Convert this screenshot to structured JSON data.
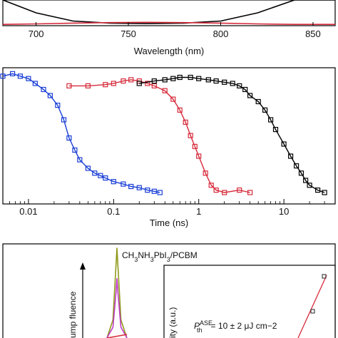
{
  "chart_data": [
    {
      "type": "line",
      "xlabel": "Wavelength (nm)",
      "xlim": [
        682,
        862
      ],
      "ylim": [
        0,
        1
      ],
      "x_ticks": [
        "700",
        "750",
        "800",
        "850"
      ],
      "x_tick_values": [
        700,
        750,
        800,
        850
      ],
      "series": [
        {
          "color": "#000000",
          "x": [
            682,
            700,
            720,
            740,
            760,
            780,
            800,
            820,
            840,
            862
          ],
          "y": [
            1.0,
            0.5,
            0.18,
            0.1,
            0.08,
            0.1,
            0.18,
            0.5,
            1.0,
            1.0
          ]
        },
        {
          "color": "#d62a3a",
          "x": [
            682,
            700,
            720,
            740,
            760,
            780,
            800,
            820,
            840,
            862
          ],
          "y": [
            0.05,
            0.07,
            0.1,
            0.12,
            0.13,
            0.12,
            0.1,
            0.07,
            0.05,
            0.05
          ]
        }
      ]
    },
    {
      "type": "scatter",
      "xlabel": "Time (ns)",
      "xscale": "log",
      "xlim": [
        0.005,
        40
      ],
      "ylim": [
        0,
        1
      ],
      "x_ticks": [
        "0.01",
        "0.1",
        "1",
        "10"
      ],
      "x_tick_values": [
        0.01,
        0.1,
        1,
        10
      ],
      "series": [
        {
          "color": "#1a3fd6",
          "x": [
            0.005,
            0.0065,
            0.008,
            0.01,
            0.012,
            0.015,
            0.018,
            0.022,
            0.026,
            0.03,
            0.035,
            0.04,
            0.05,
            0.06,
            0.07,
            0.08,
            0.1,
            0.13,
            0.16,
            0.2,
            0.25,
            0.3,
            0.35
          ],
          "y": [
            0.96,
            0.98,
            0.96,
            0.94,
            0.9,
            0.85,
            0.8,
            0.72,
            0.6,
            0.45,
            0.35,
            0.27,
            0.2,
            0.16,
            0.14,
            0.12,
            0.09,
            0.07,
            0.05,
            0.04,
            0.02,
            0.01,
            0.0
          ]
        },
        {
          "color": "#d62a3a",
          "x": [
            0.03,
            0.05,
            0.08,
            0.1,
            0.13,
            0.16,
            0.2,
            0.25,
            0.3,
            0.4,
            0.5,
            0.6,
            0.7,
            0.8,
            0.9,
            1.0,
            1.2,
            1.4,
            1.6,
            2.0,
            3.0,
            4.0
          ],
          "y": [
            0.88,
            0.88,
            0.89,
            0.9,
            0.92,
            0.93,
            0.92,
            0.9,
            0.88,
            0.84,
            0.77,
            0.68,
            0.58,
            0.47,
            0.38,
            0.3,
            0.16,
            0.06,
            0.02,
            0.0,
            0.02,
            0.0
          ]
        },
        {
          "color": "#000000",
          "x": [
            0.2,
            0.3,
            0.4,
            0.5,
            0.6,
            0.8,
            1.0,
            1.3,
            1.6,
            2.0,
            2.5,
            3.0,
            3.5,
            4.0,
            5.0,
            6.0,
            7.0,
            8.0,
            10,
            12,
            14,
            16,
            18,
            20,
            25,
            30
          ],
          "y": [
            0.9,
            0.92,
            0.93,
            0.94,
            0.95,
            0.95,
            0.94,
            0.93,
            0.92,
            0.91,
            0.9,
            0.88,
            0.85,
            0.8,
            0.75,
            0.68,
            0.6,
            0.52,
            0.4,
            0.3,
            0.22,
            0.16,
            0.1,
            0.06,
            0.02,
            0.0
          ]
        }
      ]
    },
    {
      "type": "line",
      "series": [
        {
          "name": "CH3NH3PbI3/PCBM",
          "color": "#8f9a1a",
          "x": [
            0.0,
            0.3,
            0.45,
            0.5,
            0.55,
            0.7,
            1.0
          ],
          "y": [
            0.0,
            0.2,
            0.8,
            1.0,
            0.8,
            0.2,
            0.0
          ]
        },
        {
          "color": "#c03cc8",
          "x": [
            0.0,
            0.3,
            0.45,
            0.5,
            0.55,
            0.7,
            1.0
          ],
          "y": [
            0.0,
            0.12,
            0.5,
            0.66,
            0.5,
            0.12,
            0.0
          ]
        },
        {
          "color": "#d62a3a",
          "x": [
            0.0,
            1.0
          ],
          "y": [
            0.0,
            0.04
          ]
        }
      ],
      "annotations": {
        "compound": "CH3NH3PbI3/PCBM",
        "arrow_label": "ump fluence",
        "inset_ylabel": "ity (a.u.)",
        "threshold_text": "= 10 ± 2 μJ cm−2",
        "threshold_symbol": "P",
        "threshold_sub": "th",
        "threshold_sup": "ASE"
      }
    }
  ]
}
